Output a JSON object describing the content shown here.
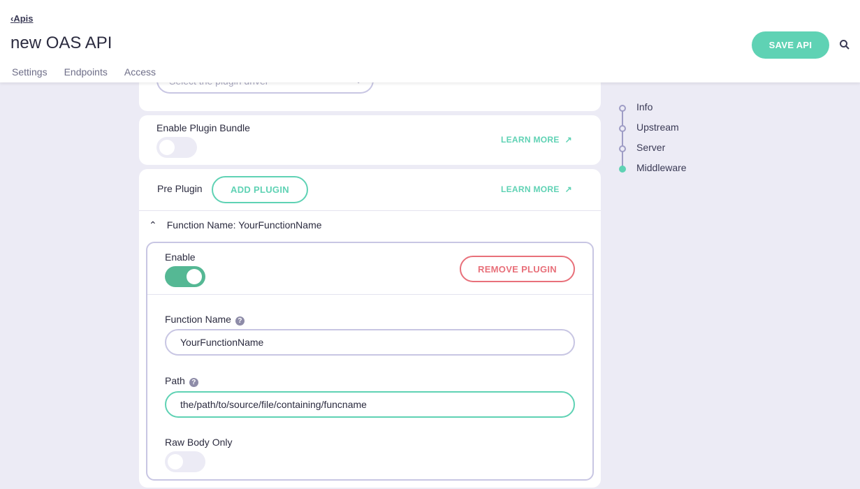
{
  "header": {
    "back_label": "Apis",
    "title": "new OAS API",
    "tabs": [
      "Settings",
      "Endpoints",
      "Access"
    ],
    "save_label": "SAVE API"
  },
  "plugin_driver": {
    "placeholder": "Select the plugin driver"
  },
  "bundle": {
    "label": "Enable Plugin Bundle",
    "enabled": false,
    "learn_more": "LEARN MORE"
  },
  "pre_plugin": {
    "label": "Pre Plugin",
    "add_label": "ADD PLUGIN",
    "learn_more": "LEARN MORE",
    "function_header": "Function Name: YourFunctionName",
    "enable_label": "Enable",
    "enabled": true,
    "remove_label": "REMOVE PLUGIN",
    "function_name_label": "Function Name",
    "function_name_value": "YourFunctionName",
    "path_label": "Path",
    "path_value": "the/path/to/source/file/containing/funcname",
    "raw_body_label": "Raw Body Only",
    "raw_body_enabled": false
  },
  "side_nav": {
    "items": [
      "Info",
      "Upstream",
      "Server",
      "Middleware"
    ],
    "active": "Middleware"
  },
  "colors": {
    "accent": "#5fd2b4",
    "danger": "#e8707a",
    "toggle_on": "#55b894"
  }
}
